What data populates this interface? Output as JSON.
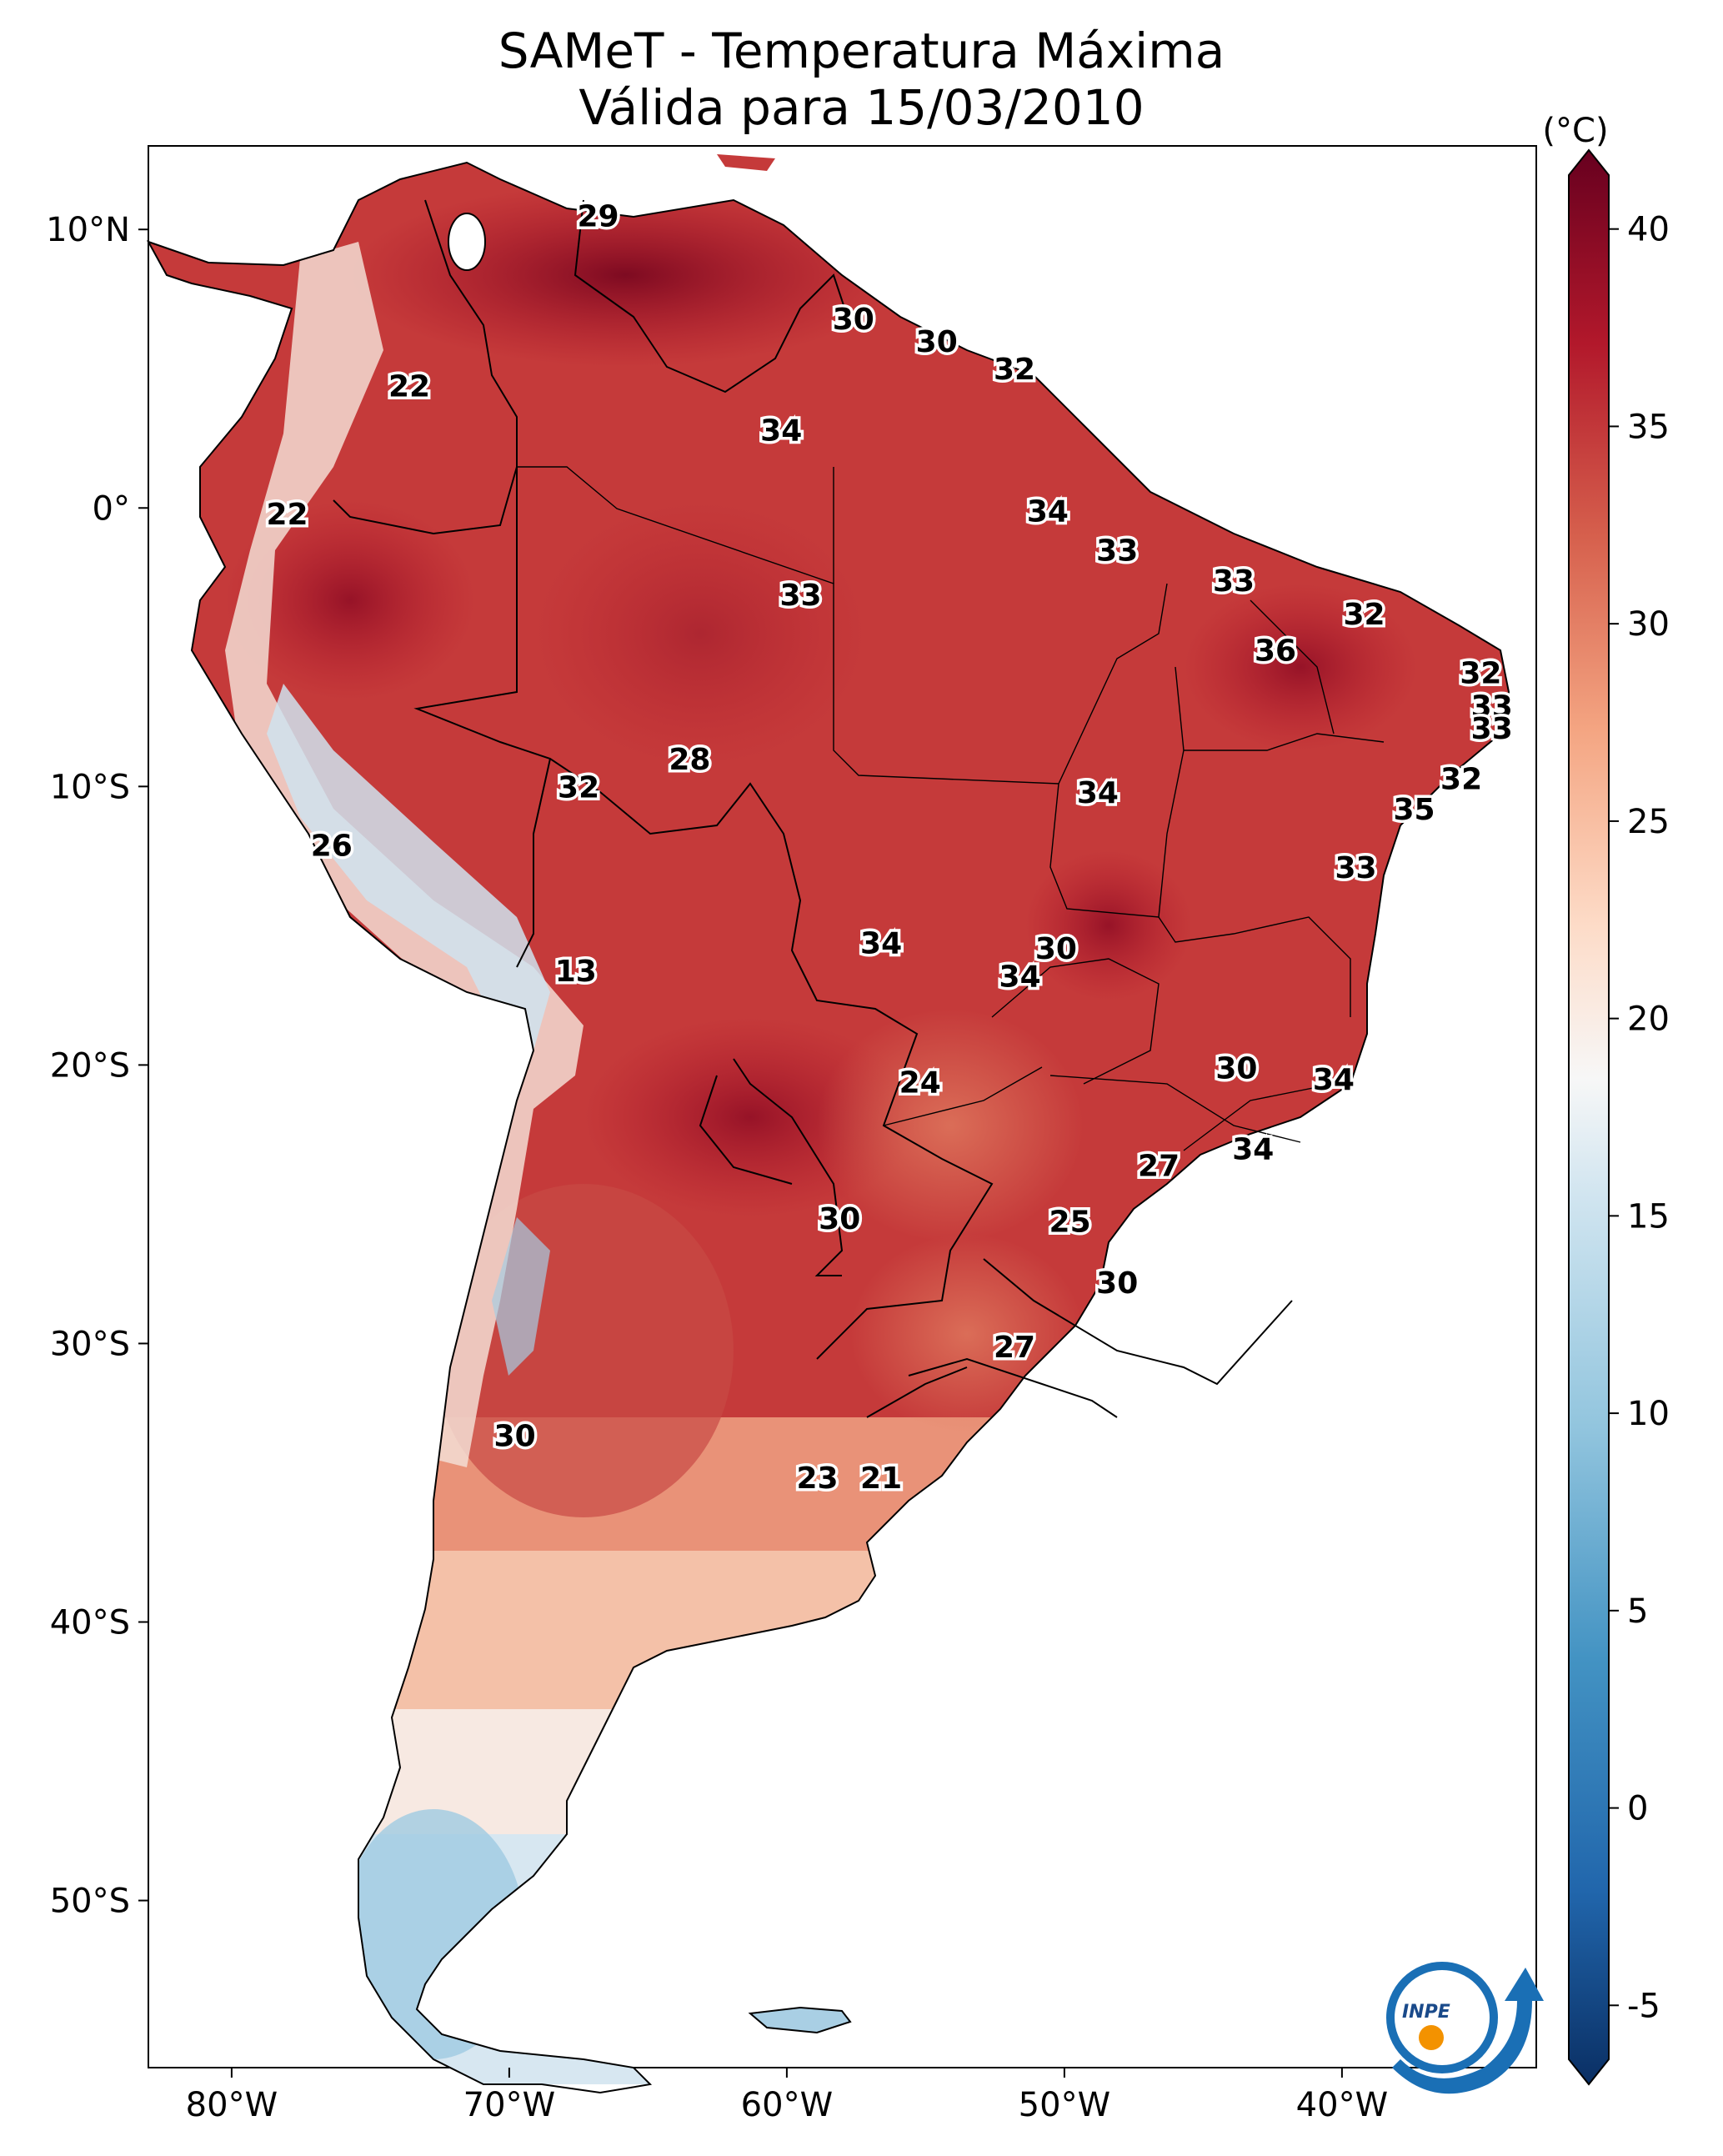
{
  "title": "SAMeT - Temperatura Máxima",
  "subtitle": "Válida para 15/03/2010",
  "colorbar": {
    "unit": "(°C)",
    "ticks": [
      "40",
      "35",
      "30",
      "25",
      "20",
      "15",
      "10",
      "5",
      "0",
      "-5"
    ],
    "min": -7,
    "max": 42
  },
  "axes": {
    "lon_labels": [
      "80°W",
      "70°W",
      "60°W",
      "50°W",
      "40°W"
    ],
    "lat_labels": [
      "10°N",
      "0°",
      "10°S",
      "20°S",
      "30°S",
      "40°S",
      "50°S"
    ],
    "lon_range": [
      -83,
      -33
    ],
    "lat_range": [
      -56,
      13
    ]
  },
  "logo": {
    "text": "INPE"
  },
  "map_labels": [
    {
      "value": "29",
      "lon": -66.8,
      "lat": 10.5
    },
    {
      "value": "22",
      "lon": -73.6,
      "lat": 4.4
    },
    {
      "value": "30",
      "lon": -57.6,
      "lat": 6.8
    },
    {
      "value": "30",
      "lon": -54.6,
      "lat": 6.0
    },
    {
      "value": "32",
      "lon": -51.8,
      "lat": 5.0
    },
    {
      "value": "34",
      "lon": -60.2,
      "lat": 2.8
    },
    {
      "value": "22",
      "lon": -78.0,
      "lat": -0.2
    },
    {
      "value": "34",
      "lon": -50.6,
      "lat": -0.1
    },
    {
      "value": "33",
      "lon": -48.1,
      "lat": -1.5
    },
    {
      "value": "33",
      "lon": -59.5,
      "lat": -3.1
    },
    {
      "value": "33",
      "lon": -43.9,
      "lat": -2.6
    },
    {
      "value": "32",
      "lon": -39.2,
      "lat": -3.8
    },
    {
      "value": "36",
      "lon": -42.4,
      "lat": -5.1
    },
    {
      "value": "32",
      "lon": -35.0,
      "lat": -5.9
    },
    {
      "value": "33",
      "lon": -34.6,
      "lat": -7.1
    },
    {
      "value": "33",
      "lon": -34.6,
      "lat": -7.9
    },
    {
      "value": "28",
      "lon": -63.5,
      "lat": -9.0
    },
    {
      "value": "32",
      "lon": -67.5,
      "lat": -10.0
    },
    {
      "value": "34",
      "lon": -48.8,
      "lat": -10.2
    },
    {
      "value": "32",
      "lon": -35.7,
      "lat": -9.7
    },
    {
      "value": "35",
      "lon": -37.4,
      "lat": -10.8
    },
    {
      "value": "26",
      "lon": -76.4,
      "lat": -12.1
    },
    {
      "value": "33",
      "lon": -39.5,
      "lat": -12.9
    },
    {
      "value": "34",
      "lon": -56.6,
      "lat": -15.6
    },
    {
      "value": "30",
      "lon": -50.3,
      "lat": -15.8
    },
    {
      "value": "34",
      "lon": -51.6,
      "lat": -16.8
    },
    {
      "value": "13",
      "lon": -67.6,
      "lat": -16.6
    },
    {
      "value": "30",
      "lon": -43.8,
      "lat": -20.1
    },
    {
      "value": "34",
      "lon": -40.3,
      "lat": -20.5
    },
    {
      "value": "24",
      "lon": -55.2,
      "lat": -20.6
    },
    {
      "value": "34",
      "lon": -43.2,
      "lat": -23.0
    },
    {
      "value": "27",
      "lon": -46.6,
      "lat": -23.6
    },
    {
      "value": "30",
      "lon": -58.1,
      "lat": -25.5
    },
    {
      "value": "25",
      "lon": -49.8,
      "lat": -25.6
    },
    {
      "value": "30",
      "lon": -48.1,
      "lat": -27.8
    },
    {
      "value": "27",
      "lon": -51.8,
      "lat": -30.1
    },
    {
      "value": "30",
      "lon": -69.8,
      "lat": -33.3
    },
    {
      "value": "23",
      "lon": -58.9,
      "lat": -34.8
    },
    {
      "value": "21",
      "lon": -56.6,
      "lat": -34.8
    }
  ]
}
